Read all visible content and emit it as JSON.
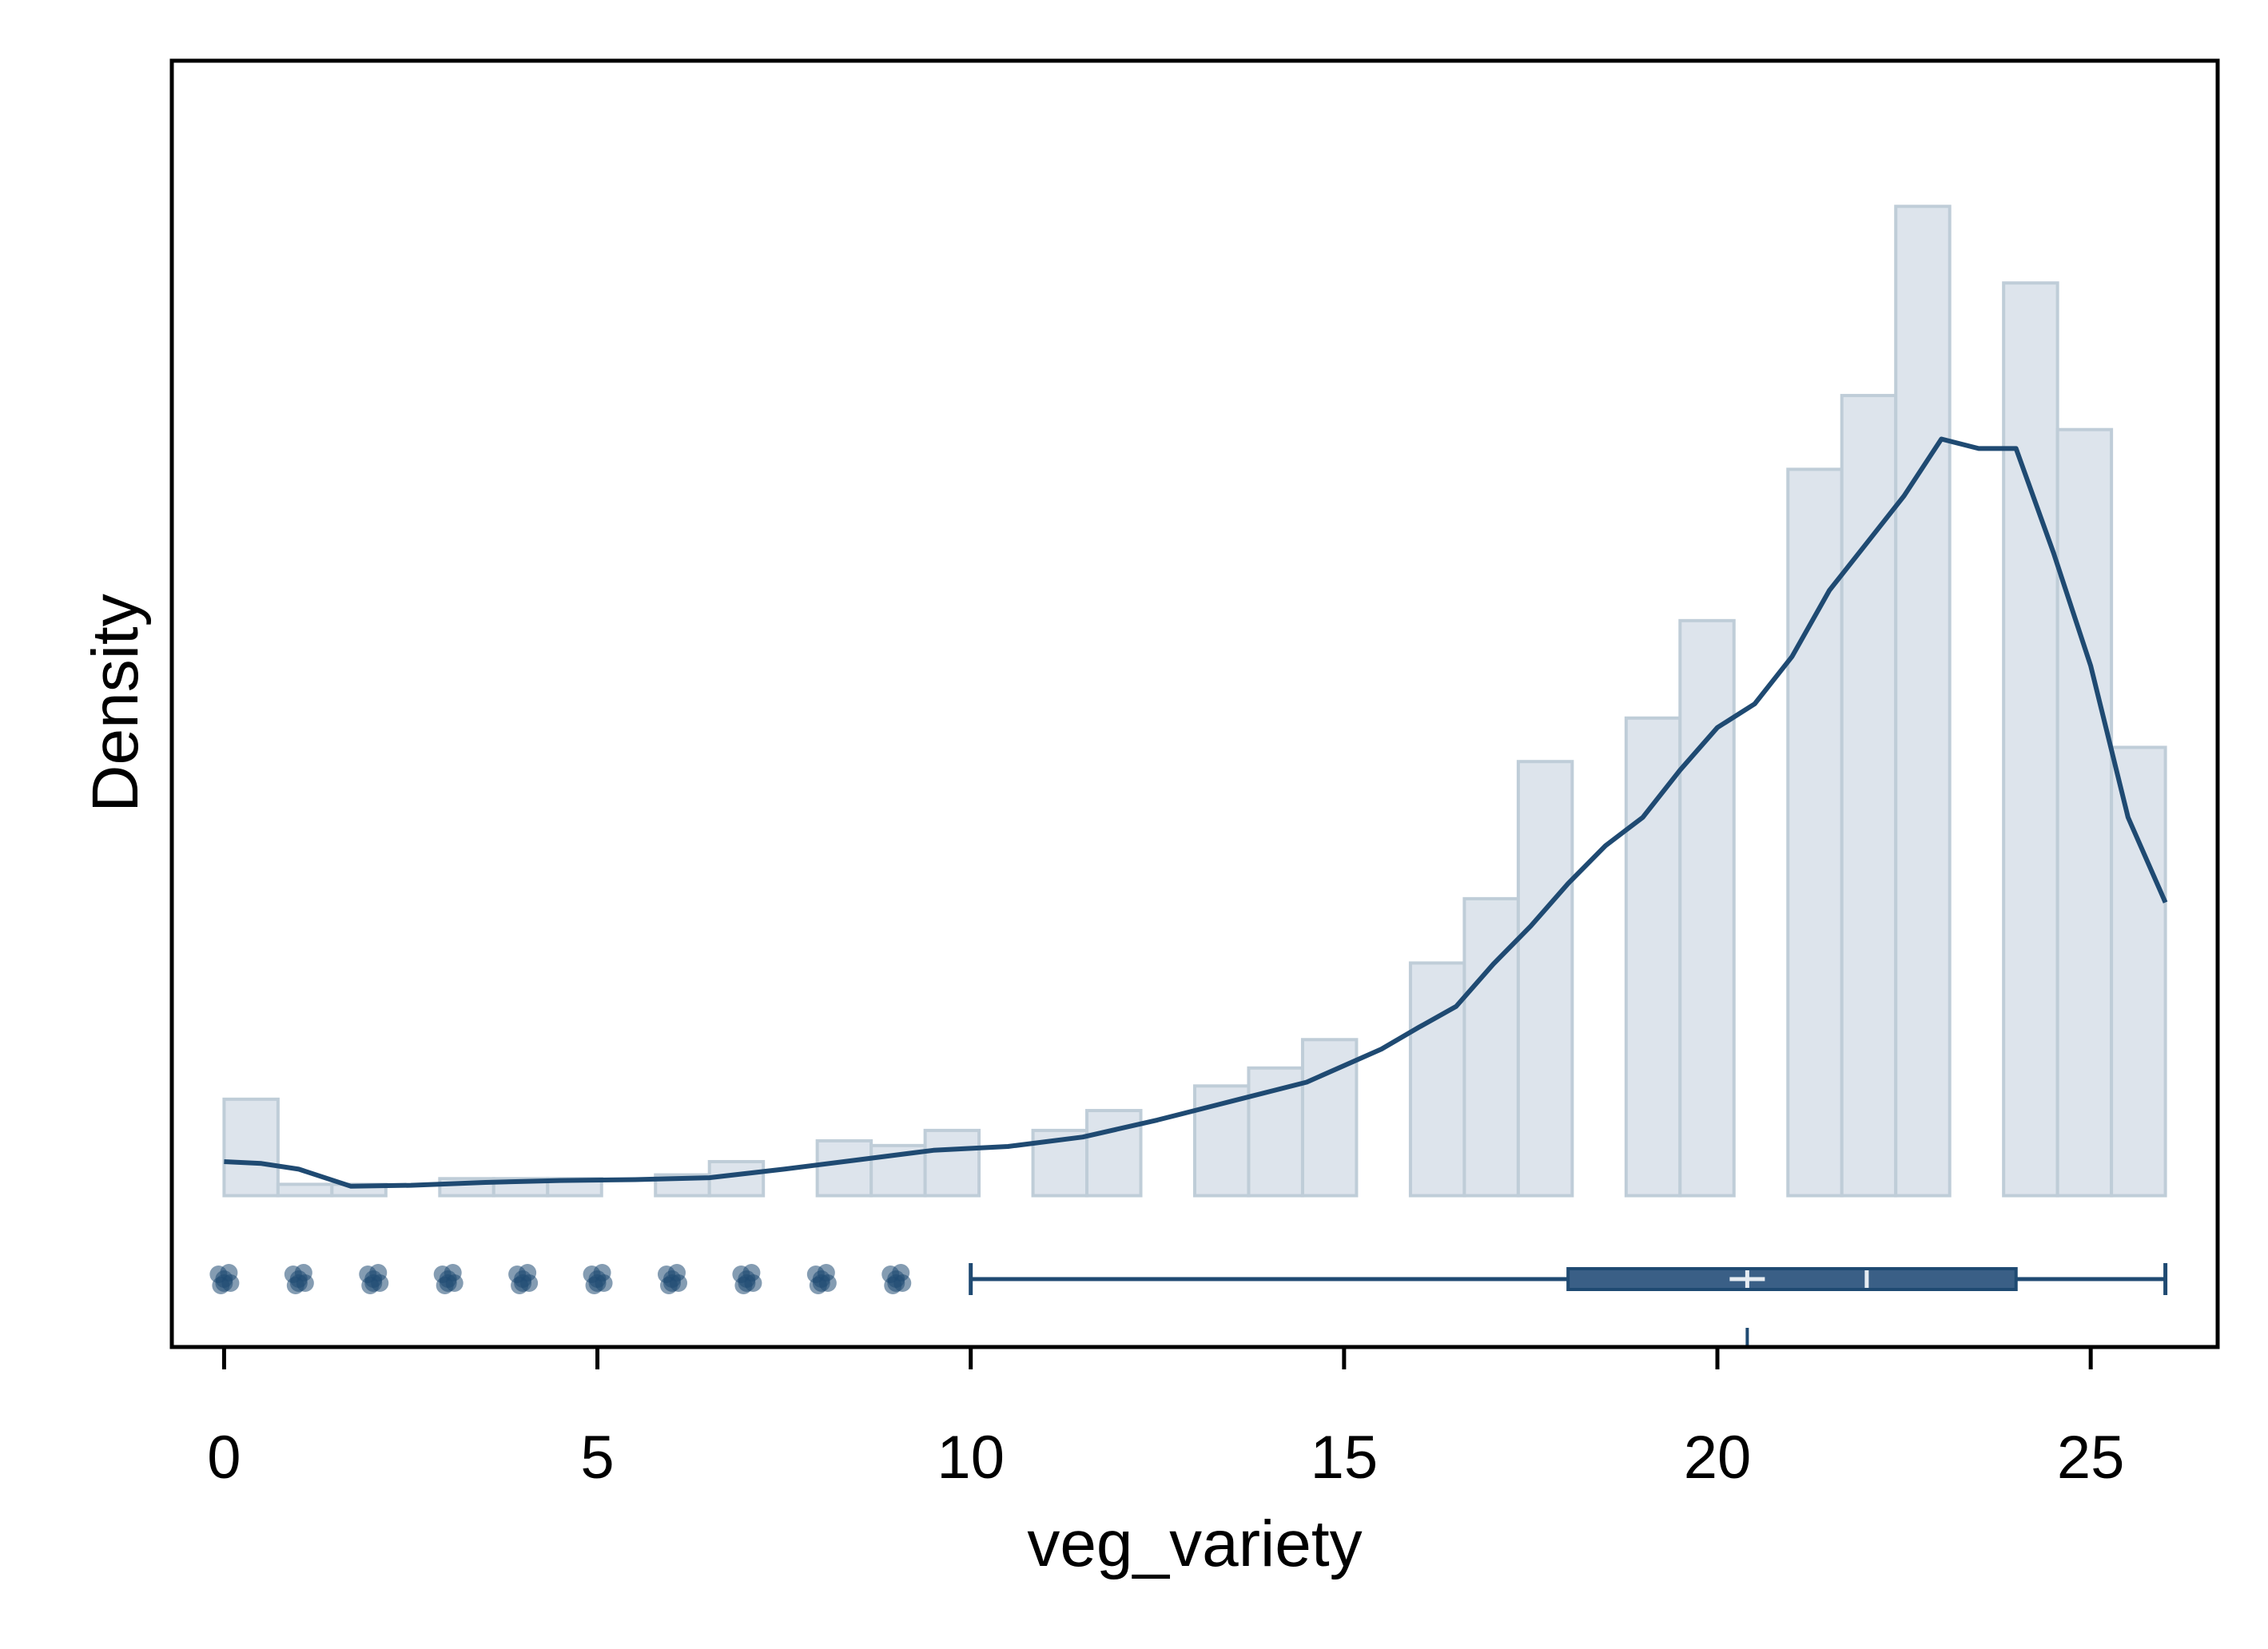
{
  "chart_data": {
    "type": "bar",
    "xlabel": "veg_variety",
    "ylabel": "Density",
    "xlim": [
      -0.7,
      26.7
    ],
    "ylim": [
      -0.016,
      0.12
    ],
    "xticks": [
      0,
      5,
      10,
      15,
      20,
      25
    ],
    "grid": false,
    "colors": {
      "bar_fill": "#dde4ec",
      "bar_stroke": "#bfcdd8",
      "line": "#1f4a72",
      "box_fill": "#3a5f86",
      "frame": "#000000"
    },
    "histogram": {
      "bin_width": 0.7222,
      "bins": [
        {
          "x0": 0.0,
          "density": 0.0102
        },
        {
          "x0": 0.7222,
          "density": 0.0012
        },
        {
          "x0": 1.4444,
          "density": 0.0012
        },
        {
          "x0": 2.8889,
          "density": 0.0018
        },
        {
          "x0": 3.6111,
          "density": 0.0018
        },
        {
          "x0": 4.3333,
          "density": 0.0018
        },
        {
          "x0": 5.7778,
          "density": 0.0022
        },
        {
          "x0": 6.5,
          "density": 0.0036
        },
        {
          "x0": 7.9444,
          "density": 0.0058
        },
        {
          "x0": 8.6667,
          "density": 0.0053
        },
        {
          "x0": 9.3889,
          "density": 0.0069
        },
        {
          "x0": 10.8333,
          "density": 0.0069
        },
        {
          "x0": 11.5556,
          "density": 0.009
        },
        {
          "x0": 13.0,
          "density": 0.0116
        },
        {
          "x0": 13.7222,
          "density": 0.0135
        },
        {
          "x0": 14.4444,
          "density": 0.0165
        },
        {
          "x0": 15.8889,
          "density": 0.0246
        },
        {
          "x0": 16.6111,
          "density": 0.0314
        },
        {
          "x0": 17.3333,
          "density": 0.0459
        },
        {
          "x0": 18.7778,
          "density": 0.0505
        },
        {
          "x0": 19.5,
          "density": 0.0608
        },
        {
          "x0": 20.9444,
          "density": 0.0768
        },
        {
          "x0": 21.6667,
          "density": 0.0846
        },
        {
          "x0": 22.3889,
          "density": 0.1046
        },
        {
          "x0": 23.8333,
          "density": 0.0965
        },
        {
          "x0": 24.5556,
          "density": 0.081
        },
        {
          "x0": 25.2778,
          "density": 0.0474
        }
      ]
    },
    "density_curve": {
      "x": [
        0,
        0.5,
        1.0,
        1.7,
        2.5,
        3.5,
        4.5,
        5.5,
        6.5,
        7.5,
        8.5,
        9.5,
        10.5,
        11.5,
        12.5,
        13.5,
        14.5,
        15.5,
        16.0,
        16.5,
        17.0,
        17.5,
        18.0,
        18.5,
        19.0,
        19.5,
        20.0,
        20.5,
        21.0,
        21.5,
        22.0,
        22.5,
        23.0,
        23.5,
        24.0,
        24.5,
        25.0,
        25.5,
        26.0
      ],
      "y": [
        0.0036,
        0.0034,
        0.0028,
        0.001,
        0.0011,
        0.0014,
        0.0016,
        0.0017,
        0.0019,
        0.0028,
        0.0038,
        0.0048,
        0.0052,
        0.0062,
        0.008,
        0.01,
        0.012,
        0.0155,
        0.0178,
        0.02,
        0.0245,
        0.0285,
        0.033,
        0.037,
        0.04,
        0.045,
        0.0495,
        0.052,
        0.057,
        0.064,
        0.069,
        0.074,
        0.08,
        0.079,
        0.079,
        0.068,
        0.056,
        0.04,
        0.031
      ]
    },
    "boxplot": {
      "whisker_low": 10,
      "q1": 18,
      "median": 22,
      "q3": 24,
      "whisker_high": 26,
      "mean": 20.4
    },
    "outliers": [
      0,
      1,
      2,
      3,
      4,
      5,
      6,
      7,
      8,
      9
    ]
  }
}
